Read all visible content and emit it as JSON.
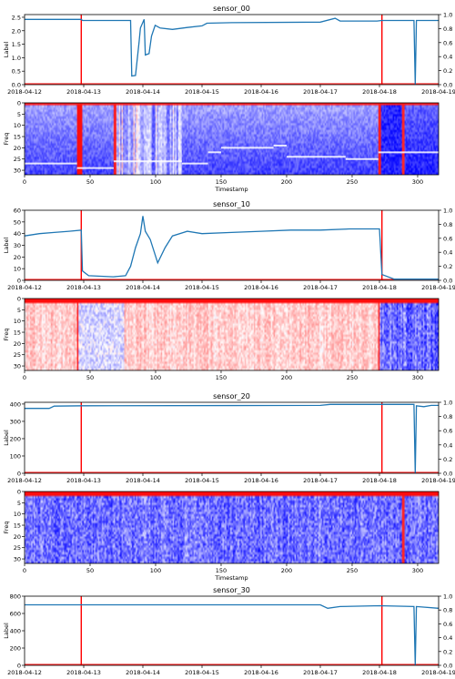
{
  "colors": {
    "series": "#1f77b4",
    "marker": "#ff0000",
    "axis": "#000000",
    "heat_low": "#0000ff",
    "heat_mid": "#ffffff",
    "heat_high": "#ff0000"
  },
  "chart_data": [
    {
      "type": "line",
      "title": "sensor_00",
      "xlabel": "",
      "ylabel": "Label",
      "x_ticks": [
        "2018-04-12",
        "2018-04-13",
        "2018-04-14",
        "2018-04-15",
        "2018-04-16",
        "2018-04-17",
        "2018-04-18",
        "2018-04-19"
      ],
      "xlim": [
        "2018-04-12",
        "2018-04-19"
      ],
      "ylim": [
        0,
        2.6
      ],
      "y_ticks": [
        "0.0",
        "0.5",
        "1.0",
        "1.5",
        "2.0",
        "2.5"
      ],
      "y2_ticks": [
        "0.0",
        "0.2",
        "0.4",
        "0.6",
        "0.8",
        "1.0"
      ],
      "series": [
        {
          "values": [
            [
              "2018-04-12 00:00",
              2.42
            ],
            [
              "2018-04-12 23:00",
              2.42
            ],
            [
              "2018-04-12 23:30",
              2.38
            ],
            [
              "2018-04-13 19:00",
              2.38
            ],
            [
              "2018-04-13 19:30",
              0.32
            ],
            [
              "2018-04-13 21:00",
              0.34
            ],
            [
              "2018-04-13 22:30",
              1.6
            ],
            [
              "2018-04-13 23:00",
              2.1
            ],
            [
              "2018-04-14 00:30",
              2.42
            ],
            [
              "2018-04-14 01:00",
              1.1
            ],
            [
              "2018-04-14 02:30",
              1.15
            ],
            [
              "2018-04-14 03:30",
              1.8
            ],
            [
              "2018-04-14 05:00",
              2.2
            ],
            [
              "2018-04-14 07:00",
              2.1
            ],
            [
              "2018-04-14 12:00",
              2.05
            ],
            [
              "2018-04-14 18:00",
              2.12
            ],
            [
              "2018-04-15 00:00",
              2.18
            ],
            [
              "2018-04-15 02:00",
              2.28
            ],
            [
              "2018-04-15 12:00",
              2.3
            ],
            [
              "2018-04-17 00:00",
              2.32
            ],
            [
              "2018-04-17 06:00",
              2.46
            ],
            [
              "2018-04-17 08:00",
              2.36
            ],
            [
              "2018-04-17 23:00",
              2.36
            ],
            [
              "2018-04-18 01:00",
              2.38
            ],
            [
              "2018-04-18 14:00",
              2.38
            ],
            [
              "2018-04-18 14:30",
              0.0
            ],
            [
              "2018-04-18 15:00",
              2.38
            ],
            [
              "2018-04-19 00:00",
              2.38
            ]
          ]
        }
      ],
      "markers": [
        "2018-04-12 23:00",
        "2018-04-18 01:00"
      ]
    },
    {
      "type": "heatmap",
      "xlabel": "Timestamp",
      "ylabel": "Freq",
      "xlim": [
        0,
        316
      ],
      "ylim": [
        32,
        0
      ],
      "x_ticks": [
        "0",
        "50",
        "100",
        "150",
        "200",
        "250",
        "300"
      ],
      "y_ticks": [
        "0",
        "5",
        "10",
        "15",
        "20",
        "25",
        "30"
      ],
      "markers": [
        40,
        68,
        270,
        288
      ],
      "trace_segments": [
        [
          0,
          27
        ],
        [
          40,
          29
        ],
        [
          68,
          26
        ],
        [
          120,
          27
        ],
        [
          140,
          22
        ],
        [
          150,
          20
        ],
        [
          190,
          19
        ],
        [
          200,
          24
        ],
        [
          245,
          25
        ],
        [
          270,
          22
        ]
      ]
    },
    {
      "type": "line",
      "title": "sensor_10",
      "xlabel": "",
      "ylabel": "Label",
      "x_ticks": [
        "2018-04-12",
        "2018-04-13",
        "2018-04-14",
        "2018-04-15",
        "2018-04-16",
        "2018-04-17",
        "2018-04-18",
        "2018-04-19"
      ],
      "xlim": [
        "2018-04-12",
        "2018-04-19"
      ],
      "ylim": [
        0,
        60
      ],
      "y_ticks": [
        "0",
        "10",
        "20",
        "30",
        "40",
        "50",
        "60"
      ],
      "y2_ticks": [
        "0.0",
        "0.2",
        "0.4",
        "0.6",
        "0.8",
        "1.0"
      ],
      "series": [
        {
          "values": [
            [
              "2018-04-12 00:00",
              38
            ],
            [
              "2018-04-12 06:00",
              40
            ],
            [
              "2018-04-12 12:00",
              41
            ],
            [
              "2018-04-12 18:00",
              42
            ],
            [
              "2018-04-12 23:00",
              43
            ],
            [
              "2018-04-12 23:30",
              8
            ],
            [
              "2018-04-13 02:00",
              4
            ],
            [
              "2018-04-13 12:00",
              3
            ],
            [
              "2018-04-13 17:00",
              4
            ],
            [
              "2018-04-13 19:00",
              12
            ],
            [
              "2018-04-13 21:00",
              28
            ],
            [
              "2018-04-13 23:00",
              40
            ],
            [
              "2018-04-14 00:00",
              55
            ],
            [
              "2018-04-14 01:00",
              42
            ],
            [
              "2018-04-14 03:00",
              35
            ],
            [
              "2018-04-14 06:00",
              15
            ],
            [
              "2018-04-14 09:00",
              28
            ],
            [
              "2018-04-14 12:00",
              38
            ],
            [
              "2018-04-14 18:00",
              42
            ],
            [
              "2018-04-15 00:00",
              40
            ],
            [
              "2018-04-15 12:00",
              41
            ],
            [
              "2018-04-16 00:00",
              42
            ],
            [
              "2018-04-16 12:00",
              43
            ],
            [
              "2018-04-17 00:00",
              43
            ],
            [
              "2018-04-17 12:00",
              44
            ],
            [
              "2018-04-18 00:00",
              44
            ],
            [
              "2018-04-18 01:00",
              5
            ],
            [
              "2018-04-18 06:00",
              1
            ],
            [
              "2018-04-19 00:00",
              1
            ]
          ]
        }
      ],
      "markers": [
        "2018-04-12 23:00",
        "2018-04-18 01:00"
      ]
    },
    {
      "type": "heatmap",
      "xlabel": "",
      "ylabel": "Freq",
      "xlim": [
        0,
        316
      ],
      "ylim": [
        32,
        0
      ],
      "x_ticks": [
        "0",
        "50",
        "100",
        "150",
        "200",
        "250",
        "300"
      ],
      "y_ticks": [
        "0",
        "5",
        "10",
        "15",
        "20",
        "25",
        "30"
      ],
      "markers": [
        40,
        270
      ],
      "trace_segments": []
    },
    {
      "type": "line",
      "title": "sensor_20",
      "xlabel": "",
      "ylabel": "Label",
      "x_ticks": [
        "2018-04-12",
        "2018-04-13",
        "2018-04-14",
        "2018-04-15",
        "2018-04-16",
        "2018-04-17",
        "2018-04-18",
        "2018-04-19"
      ],
      "xlim": [
        "2018-04-12",
        "2018-04-19"
      ],
      "ylim": [
        0,
        410
      ],
      "y_ticks": [
        "0",
        "100",
        "200",
        "300",
        "400"
      ],
      "y2_ticks": [
        "0.0",
        "0.2",
        "0.4",
        "0.6",
        "0.8",
        "1.0"
      ],
      "series": [
        {
          "values": [
            [
              "2018-04-12 00:00",
              375
            ],
            [
              "2018-04-12 10:00",
              375
            ],
            [
              "2018-04-12 12:00",
              388
            ],
            [
              "2018-04-13 00:00",
              390
            ],
            [
              "2018-04-17 00:00",
              392
            ],
            [
              "2018-04-17 04:00",
              398
            ],
            [
              "2018-04-18 14:00",
              398
            ],
            [
              "2018-04-18 14:30",
              0
            ],
            [
              "2018-04-18 15:00",
              390
            ],
            [
              "2018-04-18 18:00",
              385
            ],
            [
              "2018-04-18 21:00",
              392
            ],
            [
              "2018-04-19 00:00",
              392
            ]
          ]
        }
      ],
      "markers": [
        "2018-04-12 23:00",
        "2018-04-18 01:00"
      ]
    },
    {
      "type": "heatmap",
      "xlabel": "Timestamp",
      "ylabel": "Freq",
      "xlim": [
        0,
        316
      ],
      "ylim": [
        32,
        0
      ],
      "x_ticks": [
        "0",
        "50",
        "100",
        "150",
        "200",
        "250",
        "300"
      ],
      "y_ticks": [
        "0",
        "5",
        "10",
        "15",
        "20",
        "25",
        "30"
      ],
      "markers": [
        288
      ],
      "trace_segments": []
    },
    {
      "type": "line",
      "title": "sensor_30",
      "xlabel": "",
      "ylabel": "Label",
      "x_ticks": [
        "2018-04-12",
        "2018-04-13",
        "2018-04-14",
        "2018-04-15",
        "2018-04-16",
        "2018-04-17",
        "2018-04-18",
        "2018-04-19"
      ],
      "xlim": [
        "2018-04-12",
        "2018-04-19"
      ],
      "ylim": [
        0,
        800
      ],
      "y_ticks": [
        "0",
        "200",
        "400",
        "600",
        "800"
      ],
      "y2_ticks": [
        "0.0",
        "0.2",
        "0.4",
        "0.6",
        "0.8",
        "1.0"
      ],
      "series": [
        {
          "values": [
            [
              "2018-04-12 00:00",
              700
            ],
            [
              "2018-04-13 00:00",
              700
            ],
            [
              "2018-04-14 00:00",
              700
            ],
            [
              "2018-04-15 00:00",
              700
            ],
            [
              "2018-04-16 00:00",
              700
            ],
            [
              "2018-04-17 00:00",
              700
            ],
            [
              "2018-04-17 03:00",
              660
            ],
            [
              "2018-04-17 08:00",
              680
            ],
            [
              "2018-04-18 00:00",
              690
            ],
            [
              "2018-04-18 14:00",
              680
            ],
            [
              "2018-04-18 14:30",
              0
            ],
            [
              "2018-04-18 15:00",
              680
            ],
            [
              "2018-04-19 00:00",
              660
            ]
          ]
        }
      ],
      "markers": [
        "2018-04-12 23:00",
        "2018-04-18 01:00"
      ]
    }
  ]
}
